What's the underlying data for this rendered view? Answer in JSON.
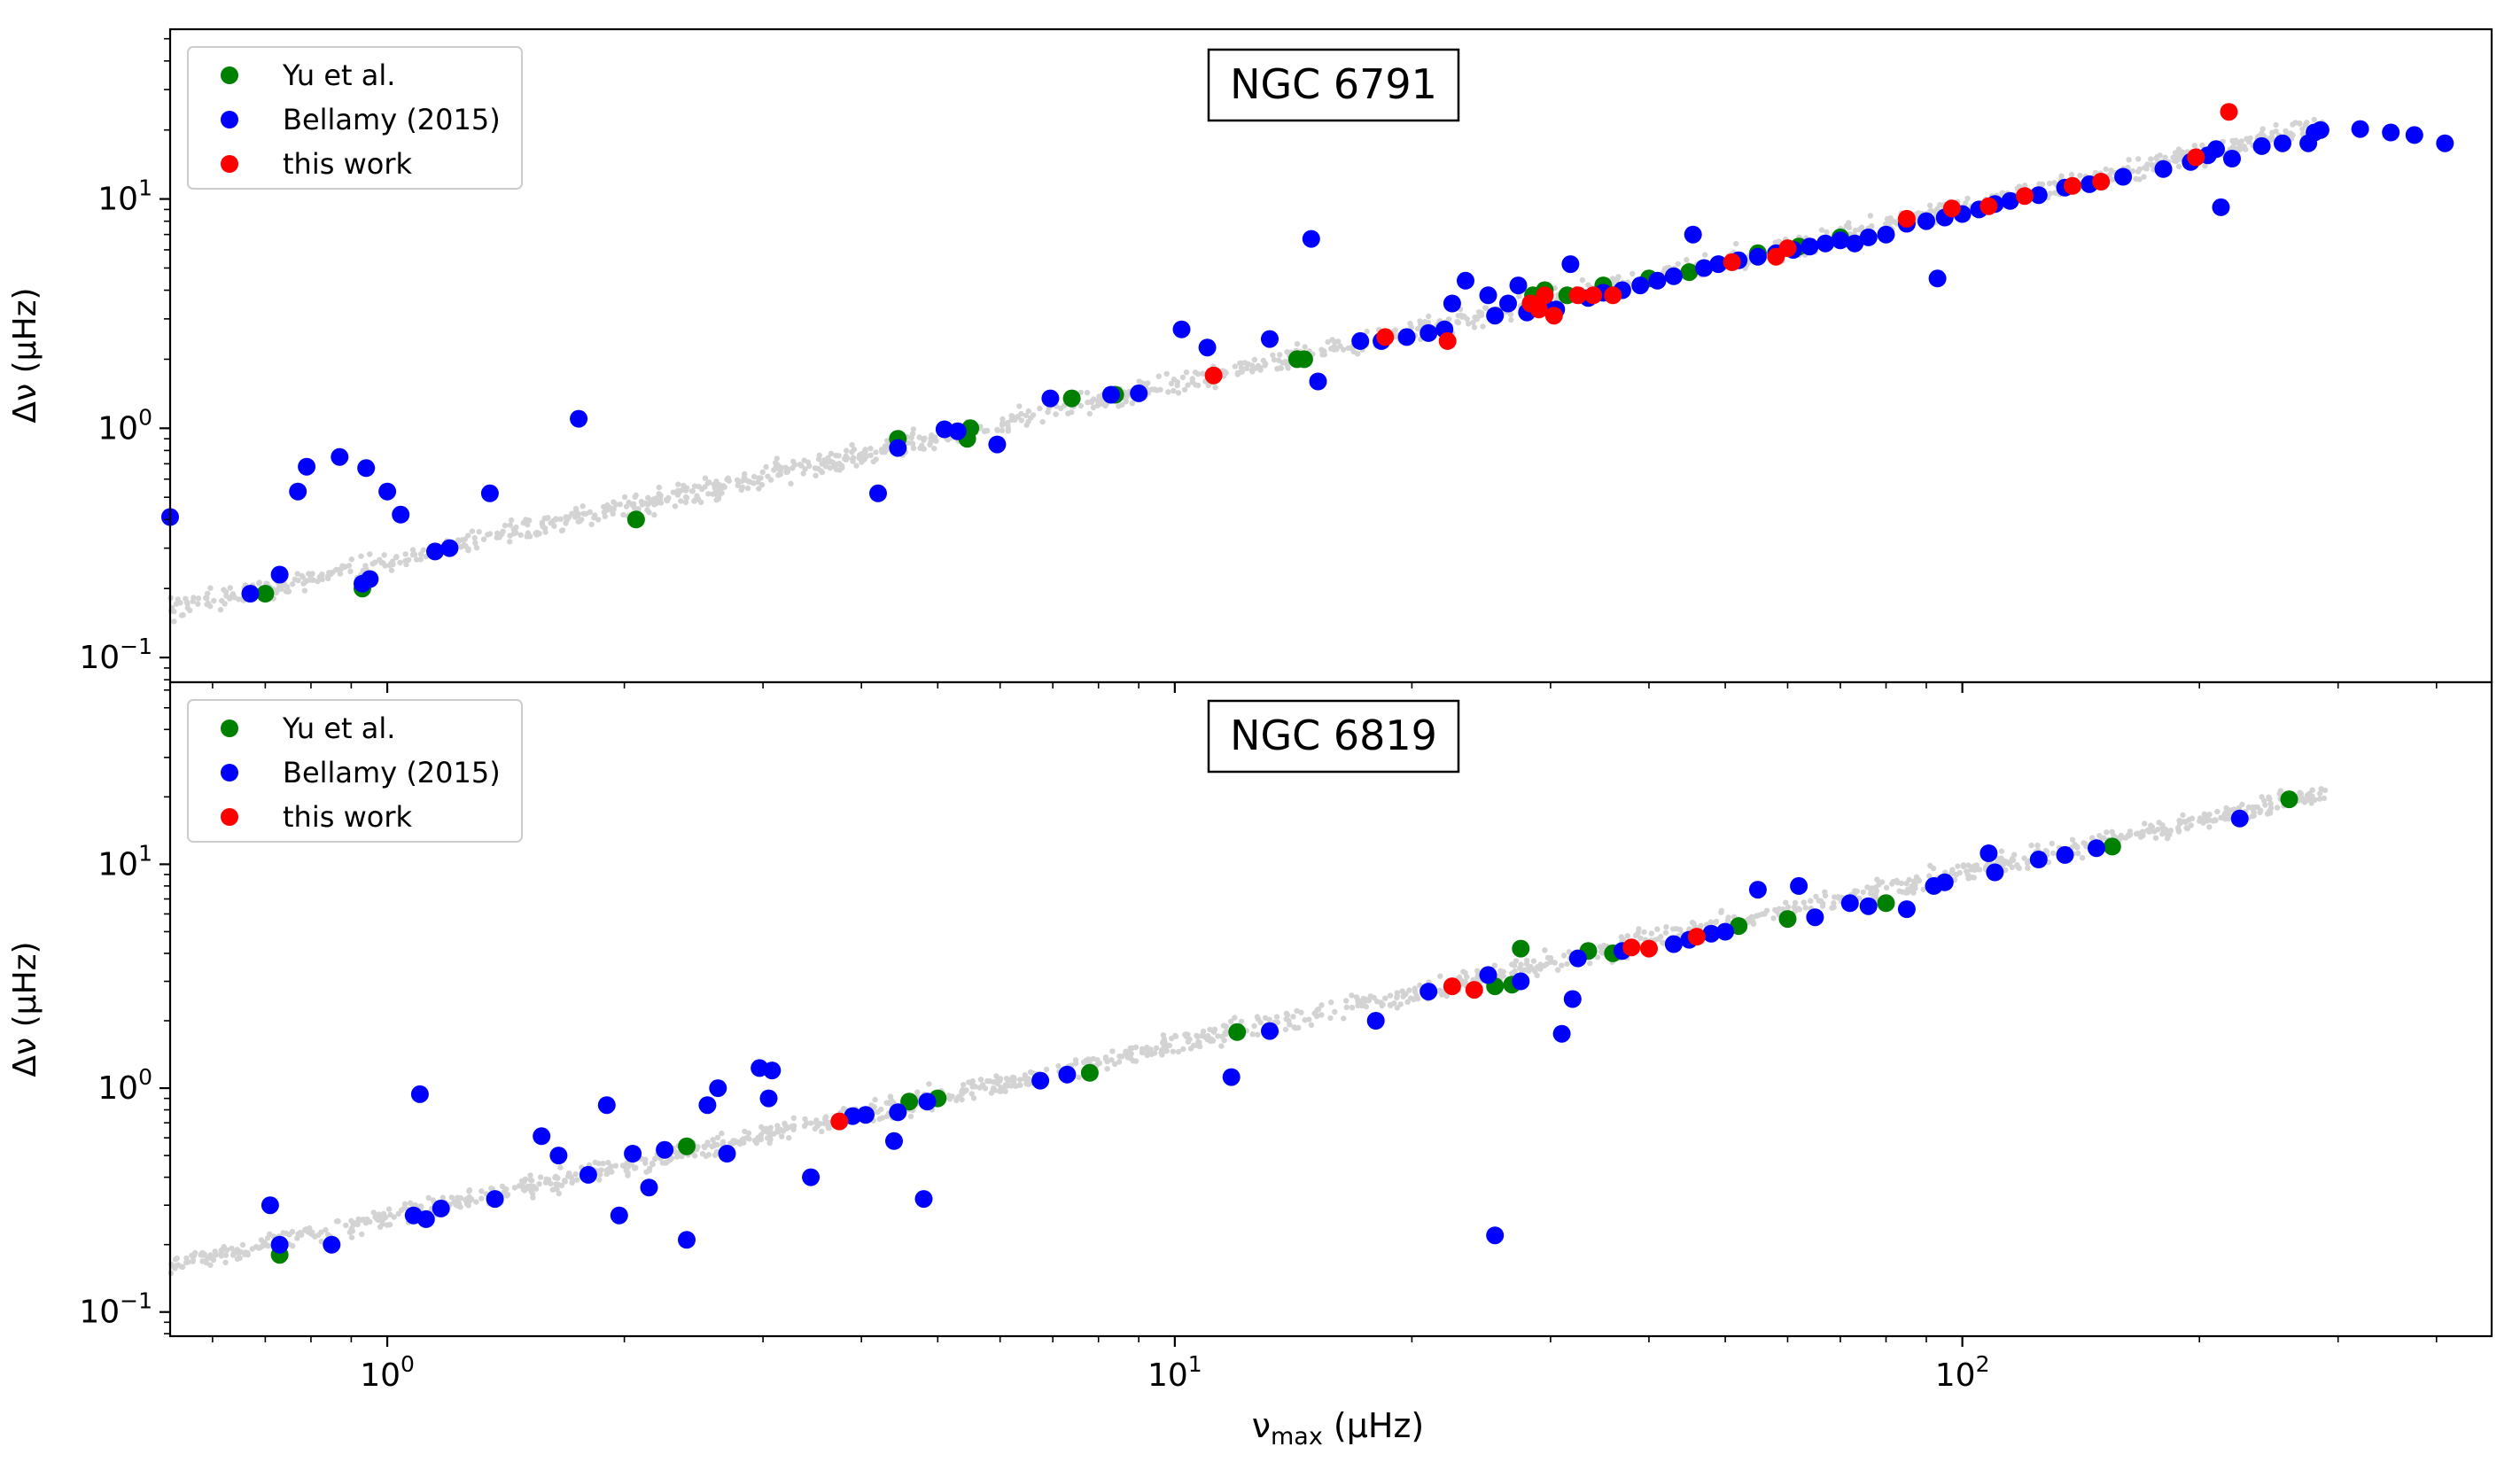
{
  "colors": {
    "background": "#d3d3d3",
    "yu": "#008000",
    "bellamy": "#0000ff",
    "this_work": "#ff0000"
  },
  "shared_x_axis": {
    "label_prefix": "ν",
    "label_sub": "max",
    "label_suffix": " (μHz)",
    "scale": "log",
    "xlim": [
      0.53,
      470
    ],
    "major_ticks": [
      {
        "value": 1,
        "base": "10",
        "exp": "0"
      },
      {
        "value": 10,
        "base": "10",
        "exp": "1"
      },
      {
        "value": 100,
        "base": "10",
        "exp": "2"
      }
    ]
  },
  "chart_data": [
    {
      "type": "scatter",
      "title": "NGC 6791",
      "xlabel": "νmax (μHz)",
      "ylabel": "Δν (μHz)",
      "xscale": "log",
      "yscale": "log",
      "xlim": [
        0.53,
        470
      ],
      "ylim": [
        0.078,
        55
      ],
      "y_major_ticks": [
        {
          "value": 0.1,
          "base": "10",
          "exp": "−1"
        },
        {
          "value": 1,
          "base": "10",
          "exp": "0"
        },
        {
          "value": 10,
          "base": "10",
          "exp": "1"
        }
      ],
      "legend_position": "top-left",
      "background_series": {
        "color": "#d3d3d3",
        "relation": "scaling relation cloud",
        "x_range": [
          0.5,
          290
        ]
      },
      "series": [
        {
          "name": "Yu et al.",
          "color": "#008000",
          "points": [
            [
              0.7,
              0.19
            ],
            [
              0.93,
              0.2
            ],
            [
              2.07,
              0.4
            ],
            [
              4.45,
              0.9
            ],
            [
              5.45,
              0.9
            ],
            [
              5.5,
              1.0
            ],
            [
              7.4,
              1.35
            ],
            [
              8.4,
              1.4
            ],
            [
              14.3,
              2.0
            ],
            [
              14.6,
              2.0
            ],
            [
              28.5,
              3.8
            ],
            [
              29.5,
              4.0
            ],
            [
              31.5,
              3.8
            ],
            [
              35,
              4.2
            ],
            [
              40,
              4.5
            ],
            [
              45,
              4.8
            ],
            [
              55,
              5.8
            ],
            [
              62,
              6.2
            ],
            [
              70,
              6.8
            ]
          ]
        },
        {
          "name": "Bellamy (2015)",
          "color": "#0000ff",
          "points": [
            [
              0.53,
              0.41
            ],
            [
              0.67,
              0.19
            ],
            [
              0.73,
              0.23
            ],
            [
              0.77,
              0.53
            ],
            [
              0.79,
              0.68
            ],
            [
              0.87,
              0.75
            ],
            [
              0.94,
              0.67
            ],
            [
              1.0,
              0.53
            ],
            [
              1.04,
              0.42
            ],
            [
              0.93,
              0.21
            ],
            [
              0.95,
              0.22
            ],
            [
              1.15,
              0.29
            ],
            [
              1.2,
              0.3
            ],
            [
              1.35,
              0.52
            ],
            [
              1.75,
              1.1
            ],
            [
              4.2,
              0.52
            ],
            [
              4.45,
              0.82
            ],
            [
              5.1,
              0.99
            ],
            [
              5.3,
              0.97
            ],
            [
              5.95,
              0.85
            ],
            [
              6.95,
              1.35
            ],
            [
              8.3,
              1.4
            ],
            [
              9.0,
              1.42
            ],
            [
              10.2,
              2.7
            ],
            [
              11.0,
              2.25
            ],
            [
              13.2,
              2.45
            ],
            [
              14.9,
              6.7
            ],
            [
              15.2,
              1.6
            ],
            [
              17.2,
              2.4
            ],
            [
              18.3,
              2.4
            ],
            [
              19.7,
              2.5
            ],
            [
              21.0,
              2.6
            ],
            [
              22.0,
              2.7
            ],
            [
              22.5,
              3.5
            ],
            [
              23.4,
              4.4
            ],
            [
              25,
              3.8
            ],
            [
              25.5,
              3.1
            ],
            [
              26.5,
              3.5
            ],
            [
              27.3,
              4.2
            ],
            [
              28,
              3.2
            ],
            [
              29.5,
              3.4
            ],
            [
              30.5,
              3.3
            ],
            [
              31.8,
              5.2
            ],
            [
              33.5,
              3.7
            ],
            [
              35,
              3.9
            ],
            [
              37,
              4.0
            ],
            [
              39,
              4.2
            ],
            [
              41,
              4.4
            ],
            [
              43,
              4.6
            ],
            [
              45.5,
              7.0
            ],
            [
              47,
              5.0
            ],
            [
              49,
              5.2
            ],
            [
              52,
              5.4
            ],
            [
              55,
              5.6
            ],
            [
              58,
              5.8
            ],
            [
              61,
              6.0
            ],
            [
              64,
              6.2
            ],
            [
              67,
              6.4
            ],
            [
              70,
              6.6
            ],
            [
              73,
              6.4
            ],
            [
              76,
              6.8
            ],
            [
              80,
              7.0
            ],
            [
              85,
              7.8
            ],
            [
              90,
              8.0
            ],
            [
              93,
              4.5
            ],
            [
              95,
              8.3
            ],
            [
              100,
              8.6
            ],
            [
              105,
              9.0
            ],
            [
              110,
              9.5
            ],
            [
              115,
              9.8
            ],
            [
              125,
              10.4
            ],
            [
              135,
              11.2
            ],
            [
              145,
              11.6
            ],
            [
              160,
              12.5
            ],
            [
              180,
              13.5
            ],
            [
              195,
              14.5
            ],
            [
              205,
              15.5
            ],
            [
              210,
              16.5
            ],
            [
              213,
              9.2
            ],
            [
              220,
              15.0
            ],
            [
              240,
              17.0
            ],
            [
              255,
              17.5
            ],
            [
              275,
              17.5
            ],
            [
              280,
              19.5
            ],
            [
              285,
              20.0
            ],
            [
              320,
              20.2
            ],
            [
              350,
              19.5
            ],
            [
              375,
              19.0
            ],
            [
              410,
              17.5
            ]
          ]
        },
        {
          "name": "this work",
          "color": "#ff0000",
          "points": [
            [
              11.2,
              1.7
            ],
            [
              18.5,
              2.5
            ],
            [
              22.2,
              2.4
            ],
            [
              28.3,
              3.5
            ],
            [
              29,
              3.3
            ],
            [
              29.5,
              3.8
            ],
            [
              30.3,
              3.1
            ],
            [
              32.5,
              3.8
            ],
            [
              34,
              3.8
            ],
            [
              36,
              3.8
            ],
            [
              51,
              5.3
            ],
            [
              58,
              5.6
            ],
            [
              60,
              6.1
            ],
            [
              85,
              8.2
            ],
            [
              97,
              9.1
            ],
            [
              108,
              9.3
            ],
            [
              120,
              10.3
            ],
            [
              138,
              11.4
            ],
            [
              150,
              11.9
            ],
            [
              198,
              15.2
            ],
            [
              218,
              24.0
            ]
          ]
        }
      ]
    },
    {
      "type": "scatter",
      "title": "NGC 6819",
      "xlabel": "νmax (μHz)",
      "ylabel": "Δν (μHz)",
      "xscale": "log",
      "yscale": "log",
      "xlim": [
        0.53,
        470
      ],
      "ylim": [
        0.078,
        65
      ],
      "y_major_ticks": [
        {
          "value": 0.1,
          "base": "10",
          "exp": "−1"
        },
        {
          "value": 1,
          "base": "10",
          "exp": "0"
        },
        {
          "value": 10,
          "base": "10",
          "exp": "1"
        }
      ],
      "legend_position": "top-left",
      "background_series": {
        "color": "#d3d3d3",
        "relation": "scaling relation cloud",
        "x_range": [
          0.5,
          290
        ]
      },
      "series": [
        {
          "name": "Yu et al.",
          "color": "#008000",
          "points": [
            [
              0.73,
              0.18
            ],
            [
              2.4,
              0.55
            ],
            [
              4.6,
              0.87
            ],
            [
              5.0,
              0.9
            ],
            [
              7.8,
              1.17
            ],
            [
              12.0,
              1.78
            ],
            [
              25.5,
              2.85
            ],
            [
              26.8,
              2.9
            ],
            [
              27.5,
              4.2
            ],
            [
              33.5,
              4.1
            ],
            [
              36,
              4.0
            ],
            [
              52,
              5.3
            ],
            [
              60,
              5.7
            ],
            [
              80,
              6.7
            ],
            [
              155,
              12.0
            ],
            [
              260,
              19.5
            ]
          ]
        },
        {
          "name": "Bellamy (2015)",
          "color": "#0000ff",
          "points": [
            [
              0.71,
              0.3
            ],
            [
              0.73,
              0.2
            ],
            [
              0.85,
              0.2
            ],
            [
              1.08,
              0.27
            ],
            [
              1.12,
              0.26
            ],
            [
              1.1,
              0.94
            ],
            [
              1.17,
              0.29
            ],
            [
              1.37,
              0.32
            ],
            [
              1.57,
              0.61
            ],
            [
              1.65,
              0.5
            ],
            [
              1.8,
              0.41
            ],
            [
              1.9,
              0.84
            ],
            [
              1.97,
              0.27
            ],
            [
              2.05,
              0.51
            ],
            [
              2.15,
              0.36
            ],
            [
              2.25,
              0.53
            ],
            [
              2.4,
              0.21
            ],
            [
              2.55,
              0.84
            ],
            [
              2.63,
              1.0
            ],
            [
              2.7,
              0.51
            ],
            [
              2.97,
              1.23
            ],
            [
              3.05,
              0.9
            ],
            [
              3.08,
              1.2
            ],
            [
              3.45,
              0.4
            ],
            [
              3.9,
              0.75
            ],
            [
              4.05,
              0.76
            ],
            [
              4.4,
              0.58
            ],
            [
              4.45,
              0.78
            ],
            [
              4.8,
              0.32
            ],
            [
              4.85,
              0.87
            ],
            [
              6.75,
              1.08
            ],
            [
              7.3,
              1.15
            ],
            [
              11.8,
              1.12
            ],
            [
              13.2,
              1.8
            ],
            [
              18,
              2.0
            ],
            [
              21,
              2.7
            ],
            [
              25,
              3.2
            ],
            [
              25.5,
              0.22
            ],
            [
              27.5,
              3.0
            ],
            [
              31,
              1.75
            ],
            [
              32,
              2.5
            ],
            [
              32.5,
              3.8
            ],
            [
              37,
              4.1
            ],
            [
              43,
              4.4
            ],
            [
              45,
              4.6
            ],
            [
              48,
              4.9
            ],
            [
              50,
              5.0
            ],
            [
              55,
              7.7
            ],
            [
              62,
              8.0
            ],
            [
              65,
              5.8
            ],
            [
              72,
              6.7
            ],
            [
              76,
              6.5
            ],
            [
              85,
              6.3
            ],
            [
              92,
              8.0
            ],
            [
              95,
              8.3
            ],
            [
              108,
              11.2
            ],
            [
              110,
              9.2
            ],
            [
              125,
              10.5
            ],
            [
              135,
              11.0
            ],
            [
              148,
              11.8
            ],
            [
              225,
              16.0
            ]
          ]
        },
        {
          "name": "this work",
          "color": "#ff0000",
          "points": [
            [
              3.75,
              0.71
            ],
            [
              22.5,
              2.85
            ],
            [
              24,
              2.75
            ],
            [
              38,
              4.25
            ],
            [
              40,
              4.2
            ],
            [
              46,
              4.75
            ]
          ]
        }
      ]
    }
  ],
  "legend_labels": [
    "Yu et al.",
    "Bellamy (2015)",
    "this work"
  ]
}
